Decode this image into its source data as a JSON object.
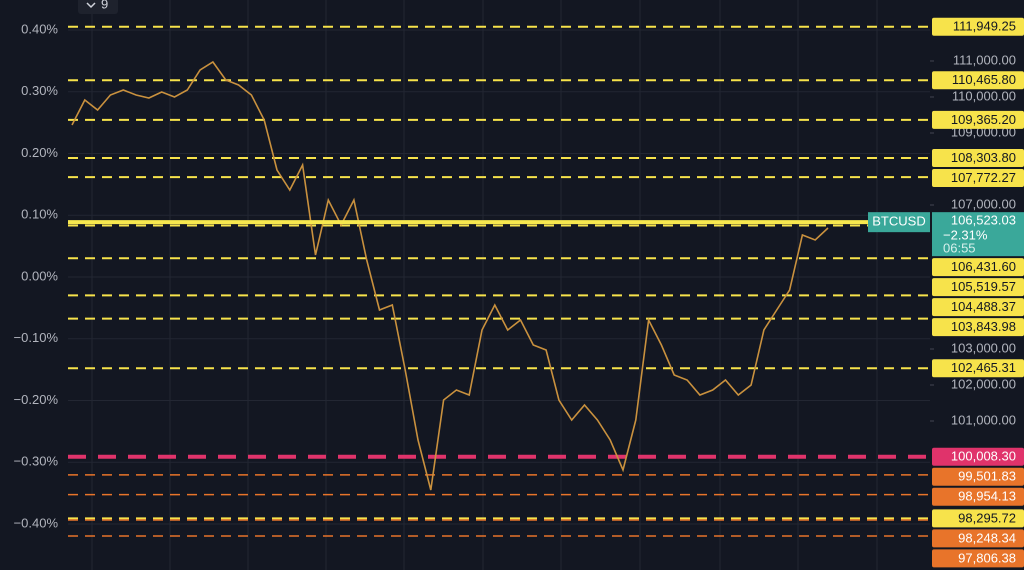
{
  "chart_data": {
    "type": "line",
    "interval": "9",
    "ylim": [
      -0.4745,
      0.4486
    ],
    "yticks": [
      {
        "value": 0.4,
        "label": "0.40%"
      },
      {
        "value": 0.3,
        "label": "0.30%"
      },
      {
        "value": 0.2,
        "label": "0.20%"
      },
      {
        "value": 0.1,
        "label": "0.10%"
      },
      {
        "value": 0,
        "label": "0.00%"
      },
      {
        "value": -0.1,
        "label": "−0.10%"
      },
      {
        "value": -0.2,
        "label": "−0.20%"
      },
      {
        "value": -0.3,
        "label": "−0.30%"
      },
      {
        "value": -0.4,
        "label": "−0.40%"
      }
    ],
    "y2lim": [
      96861,
      112694
    ],
    "y2ticks": [
      {
        "value": 111000,
        "label": "111,000.00"
      },
      {
        "value": 110000,
        "label": "110,000.00"
      },
      {
        "value": 109000,
        "label": "109,000.00"
      },
      {
        "value": 107000,
        "label": "107,000.00"
      },
      {
        "value": 103000,
        "label": "103,000.00"
      },
      {
        "value": 102000,
        "label": "102,000.00"
      },
      {
        "value": 101000,
        "label": "101,000.00"
      }
    ],
    "series": [
      {
        "name": "BTCUSD",
        "color": "#c9913e",
        "axis": "y2",
        "values": [
          109222,
          109917,
          109639,
          110056,
          110194,
          110056,
          109972,
          110139,
          110000,
          110194,
          110750,
          110972,
          110472,
          110333,
          110056,
          109361,
          107972,
          107417,
          108111,
          105611,
          107139,
          106444,
          107139,
          105472,
          104083,
          104222,
          102417,
          100472,
          99083,
          101583,
          101861,
          101722,
          103528,
          104222,
          103528,
          103806,
          103111,
          102972,
          101583,
          101028,
          101444,
          101028,
          100472,
          99639,
          101028,
          103806,
          103111,
          102278,
          102139,
          101722,
          101861,
          102139,
          101722,
          102000,
          103528,
          104083,
          104639,
          106167,
          106028,
          106361
        ]
      }
    ],
    "current_price": {
      "value": 106523.03,
      "label": "106,523.03",
      "change": {
        "value": -2.31,
        "label": "−2.31%"
      },
      "countdown": "06:55",
      "color": "#3aa89a",
      "line_color": "#f7e84f"
    },
    "price_levels": [
      {
        "value": 111949.25,
        "label": "111,949.25",
        "color": "#f7e34b"
      },
      {
        "value": 110465.8,
        "label": "110,465.80",
        "color": "#f7e34b"
      },
      {
        "value": 109365.2,
        "label": "109,365.20",
        "color": "#f7e34b"
      },
      {
        "value": 108303.8,
        "label": "108,303.80",
        "color": "#f7e34b"
      },
      {
        "value": 107772.27,
        "label": "107,772.27",
        "color": "#f7e34b"
      },
      {
        "value": 106431.6,
        "label": "106,431.60",
        "color": "#f7e34b"
      },
      {
        "value": 105519.57,
        "label": "105,519.57",
        "color": "#f7e34b"
      },
      {
        "value": 104488.37,
        "label": "104,488.37",
        "color": "#f7e34b"
      },
      {
        "value": 103843.98,
        "label": "103,843.98",
        "color": "#f7e34b"
      },
      {
        "value": 102465.31,
        "label": "102,465.31",
        "color": "#f7e34b"
      },
      {
        "value": 100008.3,
        "label": "100,008.30",
        "color": "#e0336b"
      },
      {
        "value": 99501.83,
        "label": "99,501.83",
        "color": "#e8742a"
      },
      {
        "value": 98954.13,
        "label": "98,954.13",
        "color": "#e8742a"
      },
      {
        "value": 98295.72,
        "label": "98,295.72",
        "color": "#f7e34b"
      },
      {
        "value": 98248.34,
        "label": "98,248.34",
        "color": "#e8742a"
      },
      {
        "value": 97806.38,
        "label": "97,806.38",
        "color": "#e8742a"
      }
    ]
  }
}
